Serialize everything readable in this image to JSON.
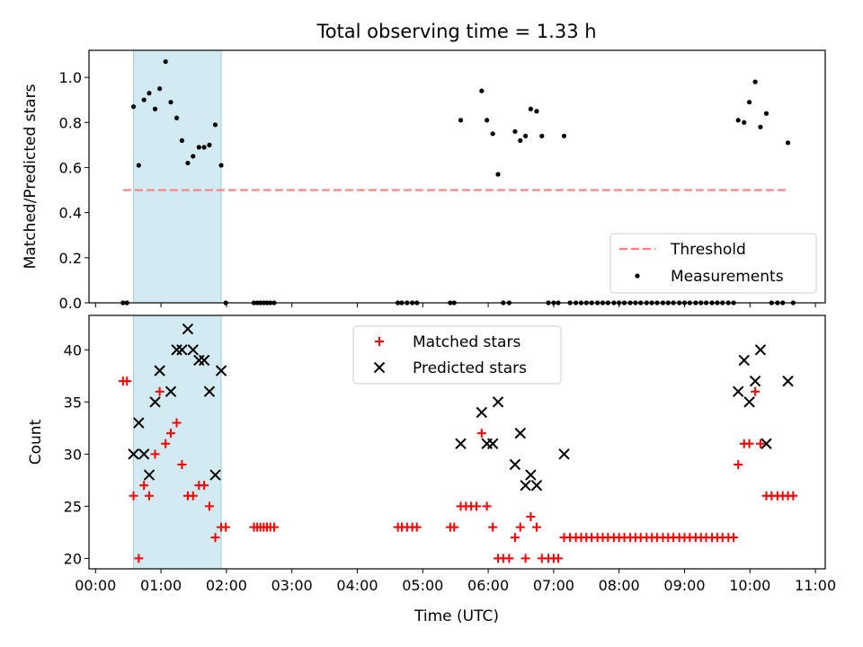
{
  "chart_data": [
    {
      "type": "scatter",
      "title": "Total observing time = 1.33 h",
      "xlabel": "",
      "ylabel": "Matched/Predicted stars",
      "x_unit": "hours UTC",
      "xlim": [
        -0.1,
        11.15
      ],
      "ylim": [
        0,
        1.12
      ],
      "y_ticks": [
        "0.0",
        "0.2",
        "0.4",
        "0.6",
        "0.8",
        "1.0"
      ],
      "highlight_span": [
        0.58,
        1.92
      ],
      "highlight_color": "#add8e6",
      "grid": false,
      "legend_position": "lower right",
      "series": [
        {
          "name": "Threshold",
          "kind": "dashed-line",
          "color": "#ff7f7f",
          "x": [
            0.42,
            10.6
          ],
          "y": [
            0.5,
            0.5
          ]
        },
        {
          "name": "Measurements",
          "kind": "points",
          "color": "#000000",
          "x": [
            0.42,
            0.48,
            0.58,
            0.66,
            0.74,
            0.82,
            0.91,
            0.98,
            1.07,
            1.15,
            1.24,
            1.32,
            1.41,
            1.49,
            1.58,
            1.66,
            1.74,
            1.83,
            1.92,
            1.99,
            2.42,
            2.47,
            2.52,
            2.57,
            2.62,
            2.67,
            2.73,
            4.62,
            4.68,
            4.76,
            4.84,
            4.91,
            5.42,
            5.48,
            5.58,
            5.9,
            5.98,
            6.07,
            6.15,
            6.23,
            6.32,
            6.41,
            6.49,
            6.57,
            6.65,
            6.74,
            6.82,
            6.92,
            7.0,
            7.07,
            7.16,
            7.25,
            7.34,
            7.42,
            7.5,
            7.58,
            7.67,
            7.75,
            7.83,
            7.92,
            8.0,
            8.08,
            8.17,
            8.25,
            8.33,
            8.42,
            8.5,
            8.58,
            8.67,
            8.75,
            8.83,
            8.92,
            9.0,
            9.08,
            9.17,
            9.25,
            9.33,
            9.42,
            9.5,
            9.58,
            9.67,
            9.75,
            9.82,
            9.91,
            9.99,
            10.08,
            10.16,
            10.25,
            10.33,
            10.42,
            10.5,
            10.58,
            10.66
          ],
          "y": [
            0.0,
            0.0,
            0.87,
            0.61,
            0.9,
            0.93,
            0.86,
            0.95,
            1.07,
            0.89,
            0.82,
            0.72,
            0.62,
            0.65,
            0.69,
            0.69,
            0.7,
            0.79,
            0.61,
            0.0,
            0.0,
            0.0,
            0.0,
            0.0,
            0.0,
            0.0,
            0.0,
            0.0,
            0.0,
            0.0,
            0.0,
            0.0,
            0.0,
            0.0,
            0.81,
            0.94,
            0.81,
            0.75,
            0.57,
            0.0,
            0.0,
            0.76,
            0.72,
            0.74,
            0.86,
            0.85,
            0.74,
            0.0,
            0.0,
            0.0,
            0.74,
            0.0,
            0.0,
            0.0,
            0.0,
            0.0,
            0.0,
            0.0,
            0.0,
            0.0,
            0.0,
            0.0,
            0.0,
            0.0,
            0.0,
            0.0,
            0.0,
            0.0,
            0.0,
            0.0,
            0.0,
            0.0,
            0.0,
            0.0,
            0.0,
            0.0,
            0.0,
            0.0,
            0.0,
            0.0,
            0.0,
            0.0,
            0.81,
            0.8,
            0.89,
            0.98,
            0.78,
            0.84,
            0.0,
            0.0,
            0.0,
            0.71,
            0.0
          ]
        }
      ]
    },
    {
      "type": "scatter",
      "title": "",
      "xlabel": "Time (UTC)",
      "ylabel": "Count",
      "x_unit": "hours UTC",
      "xlim": [
        -0.1,
        11.15
      ],
      "ylim": [
        19,
        43.3
      ],
      "y_ticks": [
        "20",
        "25",
        "30",
        "35",
        "40"
      ],
      "x_ticks": [
        "00:00",
        "01:00",
        "02:00",
        "03:00",
        "04:00",
        "05:00",
        "06:00",
        "07:00",
        "08:00",
        "09:00",
        "10:00",
        "11:00"
      ],
      "highlight_span": [
        0.58,
        1.92
      ],
      "highlight_color": "#add8e6",
      "grid": false,
      "legend_position": "upper center",
      "series": [
        {
          "name": "Matched stars",
          "marker": "plus",
          "color": "#ff0000",
          "x": [
            0.42,
            0.48,
            0.58,
            0.66,
            0.74,
            0.82,
            0.91,
            0.98,
            1.07,
            1.15,
            1.24,
            1.32,
            1.41,
            1.49,
            1.58,
            1.66,
            1.74,
            1.83,
            1.92,
            1.99,
            2.42,
            2.47,
            2.52,
            2.57,
            2.62,
            2.67,
            2.73,
            4.62,
            4.68,
            4.76,
            4.84,
            4.91,
            5.42,
            5.48,
            5.58,
            5.66,
            5.74,
            5.82,
            5.9,
            5.98,
            6.07,
            6.15,
            6.23,
            6.32,
            6.41,
            6.49,
            6.57,
            6.65,
            6.74,
            6.82,
            6.92,
            7.0,
            7.07,
            7.16,
            7.25,
            7.34,
            7.42,
            7.5,
            7.58,
            7.67,
            7.75,
            7.83,
            7.92,
            8.0,
            8.08,
            8.17,
            8.25,
            8.33,
            8.42,
            8.5,
            8.58,
            8.67,
            8.75,
            8.83,
            8.92,
            9.0,
            9.08,
            9.17,
            9.25,
            9.33,
            9.42,
            9.5,
            9.58,
            9.67,
            9.75,
            9.82,
            9.91,
            9.99,
            10.08,
            10.16,
            10.25,
            10.33,
            10.42,
            10.5,
            10.58,
            10.66
          ],
          "y": [
            37,
            37,
            26,
            20,
            27,
            26,
            30,
            36,
            31,
            32,
            33,
            29,
            26,
            26,
            27,
            27,
            25,
            22,
            23,
            23,
            23,
            23,
            23,
            23,
            23,
            23,
            23,
            23,
            23,
            23,
            23,
            23,
            23,
            23,
            25,
            25,
            25,
            25,
            32,
            25,
            23,
            20,
            20,
            20,
            22,
            23,
            20,
            24,
            23,
            20,
            20,
            20,
            20,
            22,
            22,
            22,
            22,
            22,
            22,
            22,
            22,
            22,
            22,
            22,
            22,
            22,
            22,
            22,
            22,
            22,
            22,
            22,
            22,
            22,
            22,
            22,
            22,
            22,
            22,
            22,
            22,
            22,
            22,
            22,
            22,
            29,
            31,
            31,
            36,
            31,
            26,
            26,
            26,
            26,
            26,
            26
          ]
        },
        {
          "name": "Predicted stars",
          "marker": "x",
          "color": "#000000",
          "x": [
            0.58,
            0.66,
            0.74,
            0.82,
            0.91,
            0.98,
            1.15,
            1.24,
            1.32,
            1.41,
            1.49,
            1.58,
            1.66,
            1.74,
            1.83,
            1.92,
            5.58,
            5.9,
            5.98,
            6.07,
            6.15,
            6.41,
            6.49,
            6.57,
            6.65,
            6.74,
            7.16,
            9.82,
            9.91,
            9.99,
            10.08,
            10.16,
            10.25,
            10.58
          ],
          "y": [
            30,
            33,
            30,
            28,
            35,
            38,
            36,
            40,
            40,
            42,
            40,
            39,
            39,
            36,
            28,
            38,
            31,
            34,
            31,
            31,
            35,
            29,
            32,
            27,
            28,
            27,
            30,
            36,
            39,
            35,
            37,
            40,
            31,
            37
          ]
        }
      ]
    }
  ]
}
